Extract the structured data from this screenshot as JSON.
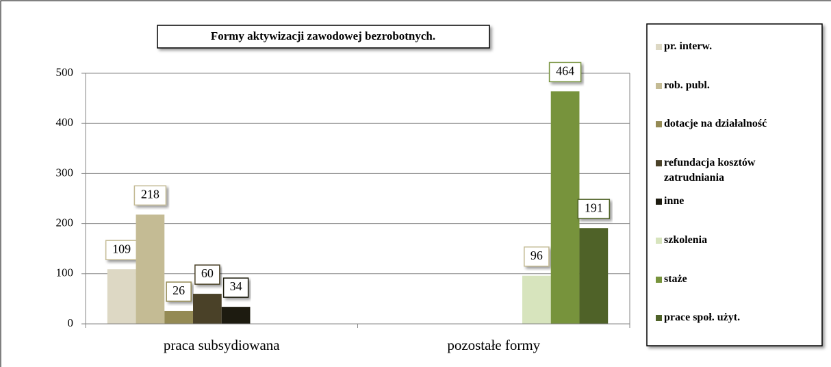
{
  "chart_data": {
    "type": "bar",
    "title": "Formy aktywizacji zawodowej bezrobotnych.",
    "categories": [
      "praca subsydiowana",
      "pozostałe formy"
    ],
    "series": [
      {
        "name": "pr. interw.",
        "color": "#ddd8c4",
        "values": [
          109,
          null
        ]
      },
      {
        "name": "rob. publ.",
        "color": "#c4bb94",
        "values": [
          218,
          null
        ]
      },
      {
        "name": "dotacje na działalność",
        "color": "#948a54",
        "values": [
          26,
          null
        ]
      },
      {
        "name": "refundacja kosztów zatrudniania",
        "color": "#4a4128",
        "values": [
          60,
          null
        ]
      },
      {
        "name": "inne",
        "color": "#1d1b10",
        "values": [
          34,
          null
        ]
      },
      {
        "name": "szkolenia",
        "color": "#d7e4bd",
        "values": [
          null,
          96
        ]
      },
      {
        "name": "staże",
        "color": "#77933c",
        "values": [
          null,
          464
        ]
      },
      {
        "name": "prace społ. użyt.",
        "color": "#4f6228",
        "values": [
          null,
          191
        ]
      }
    ],
    "ylim": [
      0,
      500
    ],
    "yticks": [
      0,
      100,
      200,
      300,
      400,
      500
    ],
    "grid": true,
    "legend": "right"
  }
}
